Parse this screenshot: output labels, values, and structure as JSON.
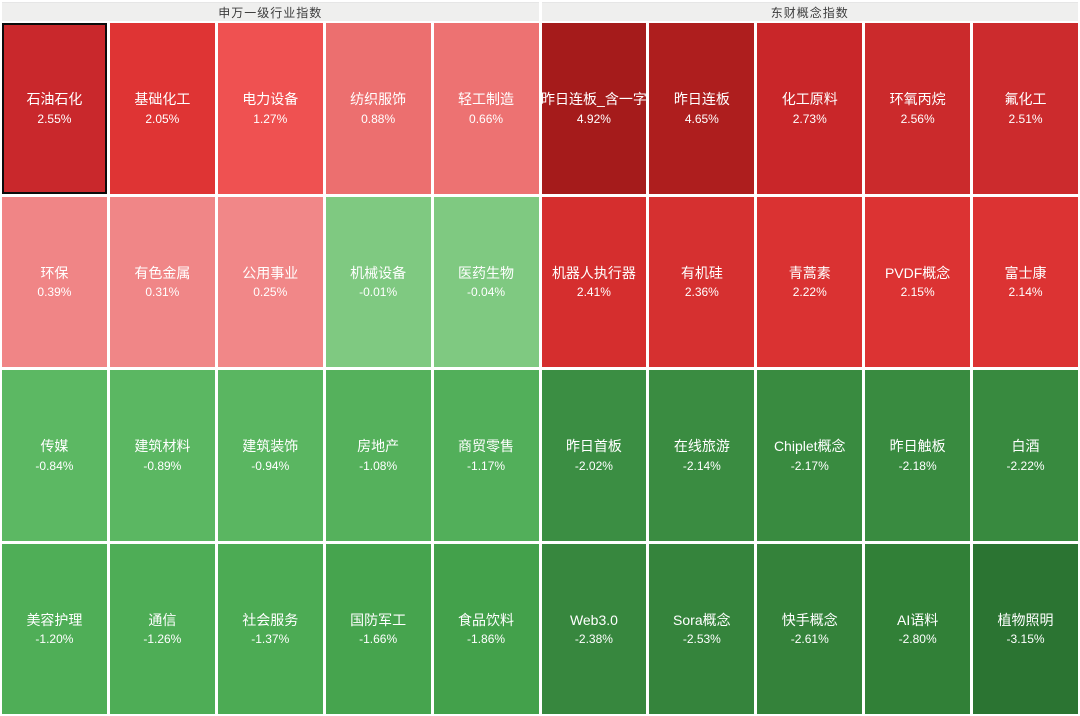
{
  "header": {
    "left_title": "申万一级行业指数",
    "right_title": "东财概念指数"
  },
  "chart_data": {
    "type": "heatmap",
    "layout": {
      "rows": 4,
      "columns_per_group": 5,
      "value_unit": "%",
      "positive_color_family": "red",
      "negative_color_family": "green"
    },
    "groups": [
      {
        "title": "申万一级行业指数",
        "items": [
          {
            "label": "石油石化",
            "value": "2.55%",
            "value_num": 2.55,
            "color": "#c9282c",
            "selected": true
          },
          {
            "label": "基础化工",
            "value": "2.05%",
            "value_num": 2.05,
            "color": "#df3434",
            "selected": false
          },
          {
            "label": "电力设备",
            "value": "1.27%",
            "value_num": 1.27,
            "color": "#ef5151",
            "selected": false
          },
          {
            "label": "纺织服饰",
            "value": "0.88%",
            "value_num": 0.88,
            "color": "#ec6f6f",
            "selected": false
          },
          {
            "label": "轻工制造",
            "value": "0.66%",
            "value_num": 0.66,
            "color": "#ed7272",
            "selected": false
          },
          {
            "label": "环保",
            "value": "0.39%",
            "value_num": 0.39,
            "color": "#f08586",
            "selected": false
          },
          {
            "label": "有色金属",
            "value": "0.31%",
            "value_num": 0.31,
            "color": "#f08687",
            "selected": false
          },
          {
            "label": "公用事业",
            "value": "0.25%",
            "value_num": 0.25,
            "color": "#f18788",
            "selected": false
          },
          {
            "label": "机械设备",
            "value": "-0.01%",
            "value_num": -0.01,
            "color": "#7fc981",
            "selected": false
          },
          {
            "label": "医药生物",
            "value": "-0.04%",
            "value_num": -0.04,
            "color": "#7fc981",
            "selected": false
          },
          {
            "label": "传媒",
            "value": "-0.84%",
            "value_num": -0.84,
            "color": "#5cb863",
            "selected": false
          },
          {
            "label": "建筑材料",
            "value": "-0.89%",
            "value_num": -0.89,
            "color": "#5bb762",
            "selected": false
          },
          {
            "label": "建筑装饰",
            "value": "-0.94%",
            "value_num": -0.94,
            "color": "#5ab661",
            "selected": false
          },
          {
            "label": "房地产",
            "value": "-1.08%",
            "value_num": -1.08,
            "color": "#55b15c",
            "selected": false
          },
          {
            "label": "商贸零售",
            "value": "-1.17%",
            "value_num": -1.17,
            "color": "#52af5a",
            "selected": false
          },
          {
            "label": "美容护理",
            "value": "-1.20%",
            "value_num": -1.2,
            "color": "#4fae57",
            "selected": false
          },
          {
            "label": "通信",
            "value": "-1.26%",
            "value_num": -1.26,
            "color": "#4ead56",
            "selected": false
          },
          {
            "label": "社会服务",
            "value": "-1.37%",
            "value_num": -1.37,
            "color": "#4cab54",
            "selected": false
          },
          {
            "label": "国防军工",
            "value": "-1.66%",
            "value_num": -1.66,
            "color": "#46a44e",
            "selected": false
          },
          {
            "label": "食品饮料",
            "value": "-1.86%",
            "value_num": -1.86,
            "color": "#43a14b",
            "selected": false
          }
        ]
      },
      {
        "title": "东财概念指数",
        "items": [
          {
            "label": "昨日连板_含一字",
            "value": "4.92%",
            "value_num": 4.92,
            "color": "#a51b1b",
            "selected": false
          },
          {
            "label": "昨日连板",
            "value": "4.65%",
            "value_num": 4.65,
            "color": "#ae1e1e",
            "selected": false
          },
          {
            "label": "化工原料",
            "value": "2.73%",
            "value_num": 2.73,
            "color": "#c92629",
            "selected": false
          },
          {
            "label": "环氧丙烷",
            "value": "2.56%",
            "value_num": 2.56,
            "color": "#cb2a2c",
            "selected": false
          },
          {
            "label": "氟化工",
            "value": "2.51%",
            "value_num": 2.51,
            "color": "#cc2b2d",
            "selected": false
          },
          {
            "label": "机器人执行器",
            "value": "2.41%",
            "value_num": 2.41,
            "color": "#d52e2e",
            "selected": false
          },
          {
            "label": "有机硅",
            "value": "2.36%",
            "value_num": 2.36,
            "color": "#d63030",
            "selected": false
          },
          {
            "label": "青蒿素",
            "value": "2.22%",
            "value_num": 2.22,
            "color": "#da3232",
            "selected": false
          },
          {
            "label": "PVDF概念",
            "value": "2.15%",
            "value_num": 2.15,
            "color": "#dc3333",
            "selected": false
          },
          {
            "label": "富士康",
            "value": "2.14%",
            "value_num": 2.14,
            "color": "#dc3333",
            "selected": false
          },
          {
            "label": "昨日首板",
            "value": "-2.02%",
            "value_num": -2.02,
            "color": "#3b8e43",
            "selected": false
          },
          {
            "label": "在线旅游",
            "value": "-2.14%",
            "value_num": -2.14,
            "color": "#3a8c41",
            "selected": false
          },
          {
            "label": "Chiplet概念",
            "value": "-2.17%",
            "value_num": -2.17,
            "color": "#398b40",
            "selected": false
          },
          {
            "label": "昨日触板",
            "value": "-2.18%",
            "value_num": -2.18,
            "color": "#398b40",
            "selected": false
          },
          {
            "label": "白酒",
            "value": "-2.22%",
            "value_num": -2.22,
            "color": "#388a3f",
            "selected": false
          },
          {
            "label": "Web3.0",
            "value": "-2.38%",
            "value_num": -2.38,
            "color": "#37873e",
            "selected": false
          },
          {
            "label": "Sora概念",
            "value": "-2.53%",
            "value_num": -2.53,
            "color": "#35843c",
            "selected": false
          },
          {
            "label": "快手概念",
            "value": "-2.61%",
            "value_num": -2.61,
            "color": "#34823a",
            "selected": false
          },
          {
            "label": "AI语料",
            "value": "-2.80%",
            "value_num": -2.8,
            "color": "#318037",
            "selected": false
          },
          {
            "label": "植物照明",
            "value": "-3.15%",
            "value_num": -3.15,
            "color": "#2b7432",
            "selected": false
          }
        ]
      }
    ]
  }
}
